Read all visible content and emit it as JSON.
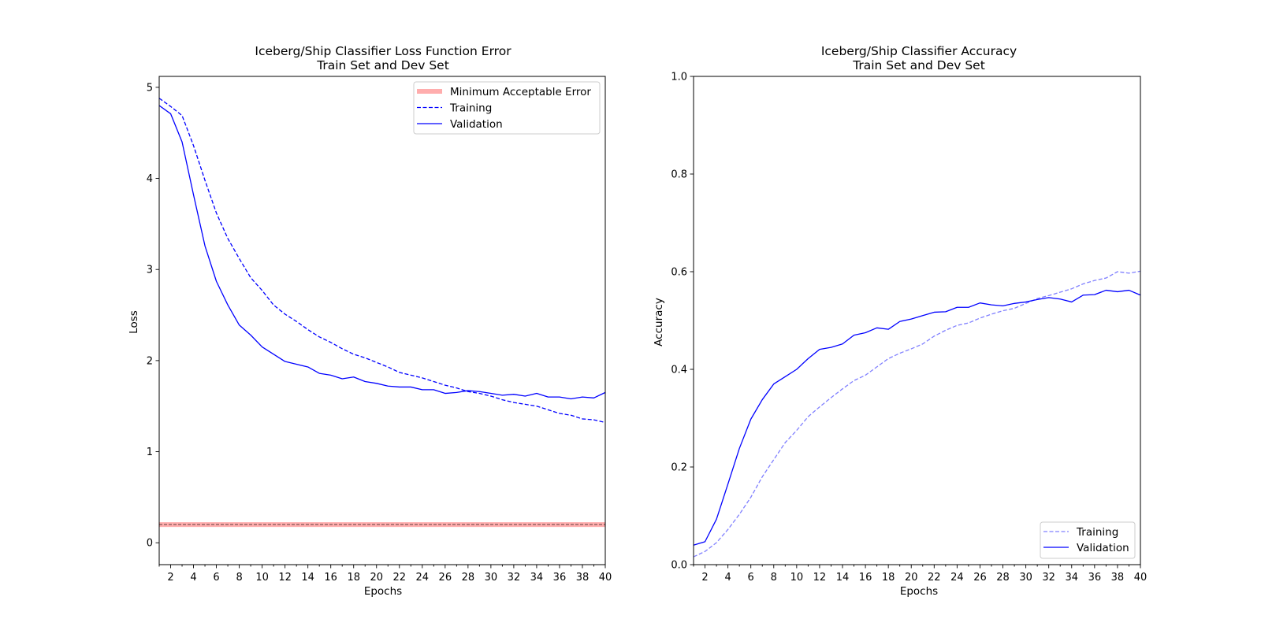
{
  "chart_data": [
    {
      "type": "line",
      "title": [
        "Iceberg/Ship Classifier Loss Function Error",
        "Train Set and Dev Set"
      ],
      "xlabel": "Epochs",
      "ylabel": "Loss",
      "xlim": [
        1,
        40
      ],
      "ylim": [
        -0.24,
        5.12
      ],
      "xticks": [
        2,
        4,
        6,
        8,
        10,
        12,
        14,
        16,
        18,
        20,
        22,
        24,
        26,
        28,
        30,
        32,
        34,
        36,
        38,
        40
      ],
      "yticks": [
        0,
        1,
        2,
        3,
        4,
        5
      ],
      "grid": false,
      "legend": "upper right",
      "hlines": [
        {
          "name": "Minimum Acceptable Error",
          "y": 0.2,
          "color": "#ff9999",
          "style": "thick"
        }
      ],
      "x": [
        1,
        2,
        3,
        4,
        5,
        6,
        7,
        8,
        9,
        10,
        11,
        12,
        13,
        14,
        15,
        16,
        17,
        18,
        19,
        20,
        21,
        22,
        23,
        24,
        25,
        26,
        27,
        28,
        29,
        30,
        31,
        32,
        33,
        34,
        35,
        36,
        37,
        38,
        39,
        40
      ],
      "series": [
        {
          "name": "Training",
          "style": "dashed",
          "color": "#0000ff",
          "values": [
            4.88,
            4.79,
            4.69,
            4.36,
            3.98,
            3.62,
            3.34,
            3.12,
            2.91,
            2.77,
            2.61,
            2.51,
            2.43,
            2.34,
            2.26,
            2.2,
            2.13,
            2.07,
            2.03,
            1.98,
            1.93,
            1.87,
            1.84,
            1.81,
            1.77,
            1.73,
            1.7,
            1.66,
            1.64,
            1.61,
            1.57,
            1.54,
            1.52,
            1.5,
            1.46,
            1.42,
            1.4,
            1.36,
            1.35,
            1.32
          ]
        },
        {
          "name": "Validation",
          "style": "solid",
          "color": "#0000ff",
          "values": [
            4.8,
            4.71,
            4.4,
            3.82,
            3.26,
            2.87,
            2.61,
            2.39,
            2.28,
            2.15,
            2.07,
            1.99,
            1.96,
            1.93,
            1.86,
            1.84,
            1.8,
            1.82,
            1.77,
            1.75,
            1.72,
            1.71,
            1.71,
            1.68,
            1.68,
            1.64,
            1.65,
            1.67,
            1.66,
            1.64,
            1.62,
            1.63,
            1.61,
            1.64,
            1.6,
            1.6,
            1.58,
            1.6,
            1.59,
            1.65
          ]
        }
      ]
    },
    {
      "type": "line",
      "title": [
        "Iceberg/Ship Classifier Accuracy",
        "Train Set and Dev Set"
      ],
      "xlabel": "Epochs",
      "ylabel": "Accuracy",
      "xlim": [
        1,
        40
      ],
      "ylim": [
        0.0,
        1.0
      ],
      "xticks": [
        2,
        4,
        6,
        8,
        10,
        12,
        14,
        16,
        18,
        20,
        22,
        24,
        26,
        28,
        30,
        32,
        34,
        36,
        38,
        40
      ],
      "yticks": [
        0.0,
        0.2,
        0.4,
        0.6,
        0.8,
        1.0
      ],
      "grid": false,
      "legend": "lower right",
      "x": [
        1,
        2,
        3,
        4,
        5,
        6,
        7,
        8,
        9,
        10,
        11,
        12,
        13,
        14,
        15,
        16,
        17,
        18,
        19,
        20,
        21,
        22,
        23,
        24,
        25,
        26,
        27,
        28,
        29,
        30,
        31,
        32,
        33,
        34,
        35,
        36,
        37,
        38,
        39,
        40
      ],
      "series": [
        {
          "name": "Training",
          "style": "dashed",
          "color": "#8080ff",
          "values": [
            0.016,
            0.027,
            0.045,
            0.072,
            0.103,
            0.138,
            0.18,
            0.215,
            0.25,
            0.275,
            0.303,
            0.323,
            0.342,
            0.36,
            0.377,
            0.388,
            0.405,
            0.422,
            0.433,
            0.442,
            0.452,
            0.468,
            0.48,
            0.49,
            0.495,
            0.505,
            0.513,
            0.52,
            0.525,
            0.535,
            0.545,
            0.551,
            0.558,
            0.565,
            0.575,
            0.582,
            0.587,
            0.6,
            0.597,
            0.601
          ]
        },
        {
          "name": "Validation",
          "style": "solid",
          "color": "#0000ff",
          "values": [
            0.04,
            0.047,
            0.093,
            0.165,
            0.238,
            0.298,
            0.338,
            0.37,
            0.385,
            0.4,
            0.422,
            0.441,
            0.445,
            0.452,
            0.47,
            0.475,
            0.485,
            0.482,
            0.498,
            0.503,
            0.51,
            0.517,
            0.518,
            0.527,
            0.527,
            0.536,
            0.532,
            0.53,
            0.535,
            0.538,
            0.543,
            0.547,
            0.544,
            0.538,
            0.552,
            0.553,
            0.562,
            0.559,
            0.562,
            0.552
          ]
        }
      ]
    }
  ]
}
